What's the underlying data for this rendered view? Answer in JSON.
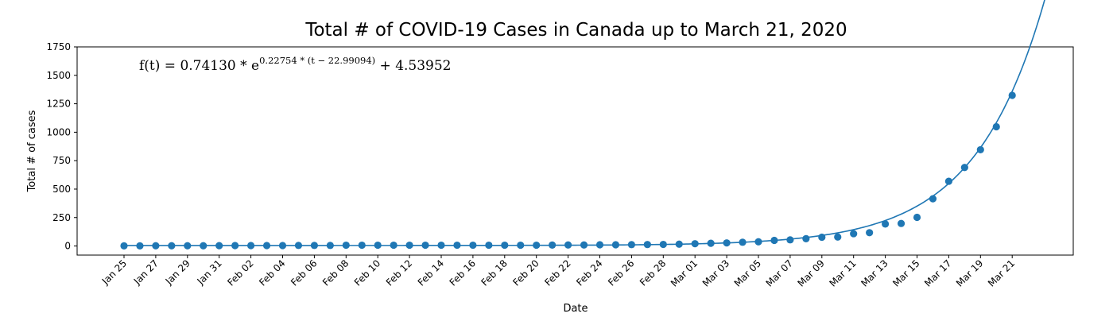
{
  "chart_data": {
    "type": "scatter",
    "title": "Total # of COVID-19 Cases in Canada up to March 21, 2020",
    "xlabel": "Date",
    "ylabel": "Total # of cases",
    "ylim": [
      -80,
      1750
    ],
    "yticks": [
      0,
      250,
      500,
      750,
      1000,
      1250,
      1500,
      1750
    ],
    "xticks": [
      "Jan 25",
      "Jan 27",
      "Jan 29",
      "Jan 31",
      "Feb 02",
      "Feb 04",
      "Feb 06",
      "Feb 08",
      "Feb 10",
      "Feb 12",
      "Feb 14",
      "Feb 16",
      "Feb 18",
      "Feb 20",
      "Feb 22",
      "Feb 24",
      "Feb 26",
      "Feb 28",
      "Mar 01",
      "Mar 03",
      "Mar 05",
      "Mar 07",
      "Mar 09",
      "Mar 11",
      "Mar 13",
      "Mar 15",
      "Mar 17",
      "Mar 19",
      "Mar 21"
    ],
    "x": [
      "Jan 25",
      "Jan 26",
      "Jan 27",
      "Jan 28",
      "Jan 29",
      "Jan 30",
      "Jan 31",
      "Feb 01",
      "Feb 02",
      "Feb 03",
      "Feb 04",
      "Feb 05",
      "Feb 06",
      "Feb 07",
      "Feb 08",
      "Feb 09",
      "Feb 10",
      "Feb 11",
      "Feb 12",
      "Feb 13",
      "Feb 14",
      "Feb 15",
      "Feb 16",
      "Feb 17",
      "Feb 18",
      "Feb 19",
      "Feb 20",
      "Feb 21",
      "Feb 22",
      "Feb 23",
      "Feb 24",
      "Feb 25",
      "Feb 26",
      "Feb 27",
      "Feb 28",
      "Feb 29",
      "Mar 01",
      "Mar 02",
      "Mar 03",
      "Mar 04",
      "Mar 05",
      "Mar 06",
      "Mar 07",
      "Mar 08",
      "Mar 09",
      "Mar 10",
      "Mar 11",
      "Mar 12",
      "Mar 13",
      "Mar 14",
      "Mar 15",
      "Mar 16",
      "Mar 17",
      "Mar 18",
      "Mar 19",
      "Mar 20",
      "Mar 21"
    ],
    "series": [
      {
        "kind": "scatter",
        "values": [
          1,
          1,
          2,
          2,
          2,
          2,
          3,
          4,
          4,
          4,
          4,
          5,
          5,
          5,
          7,
          7,
          7,
          7,
          7,
          7,
          7,
          7,
          7,
          7,
          7,
          7,
          7,
          8,
          9,
          9,
          11,
          11,
          12,
          13,
          14,
          16,
          20,
          24,
          27,
          33,
          37,
          49,
          54,
          64,
          77,
          79,
          108,
          117,
          193,
          198,
          252,
          415,
          569,
          690,
          846,
          1048,
          1324
        ]
      },
      {
        "kind": "line",
        "fit": {
          "a": 0.7413,
          "b": 0.22754,
          "c": 22.99094,
          "d": 4.53952,
          "t_start": 0,
          "t_end": 58.1
        }
      }
    ],
    "annotation": "f(t) = 0.74130 * e^{0.22754 * (t − 22.99094)} + 4.53952",
    "annotation_parts": {
      "lhs": "f(t) = 0.74130 * e",
      "exp": "0.22754 * (t − 22.99094)",
      "rhs": " + 4.53952"
    },
    "grid": false,
    "legend": "none",
    "color": "#1f77b4"
  }
}
